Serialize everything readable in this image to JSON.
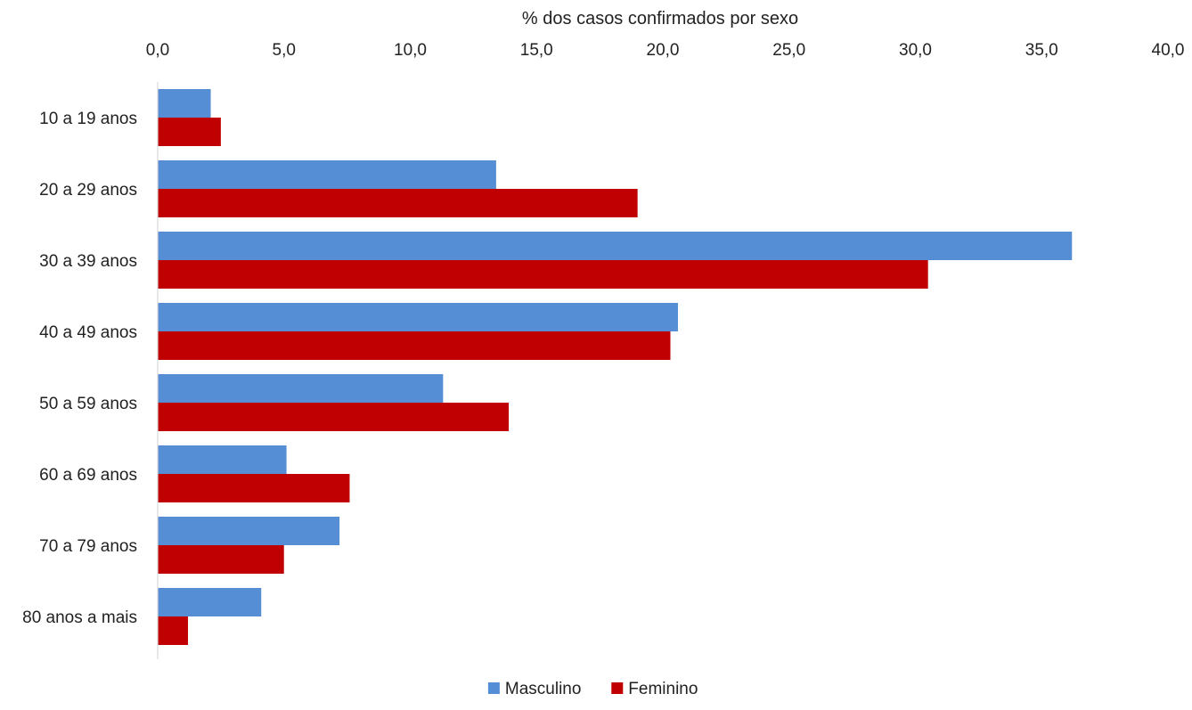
{
  "chart_data": {
    "type": "bar",
    "orientation": "horizontal",
    "title": "",
    "xlabel": "% dos casos confirmados por sexo",
    "ylabel": "",
    "xlim": [
      0,
      40
    ],
    "x_ticks": [
      "0,0",
      "5,0",
      "10,0",
      "15,0",
      "20,0",
      "25,0",
      "30,0",
      "35,0",
      "40,0"
    ],
    "x_tick_values": [
      0,
      5,
      10,
      15,
      20,
      25,
      30,
      35,
      40
    ],
    "x_axis_position": "top",
    "categories": [
      "10 a 19 anos",
      "20 a 29 anos",
      "30 a 39 anos",
      "40 a 49 anos",
      "50 a 59 anos",
      "60 a 69 anos",
      "70 a 79 anos",
      "80 anos a mais"
    ],
    "series": [
      {
        "name": "Masculino",
        "color": "#558ed5",
        "values": [
          2.1,
          13.4,
          36.2,
          20.6,
          11.3,
          5.1,
          7.2,
          4.1
        ]
      },
      {
        "name": "Feminino",
        "color": "#c00000",
        "values": [
          2.5,
          19.0,
          30.5,
          20.3,
          13.9,
          7.6,
          5.0,
          1.2
        ]
      }
    ],
    "grid": false,
    "legend_position": "bottom"
  }
}
